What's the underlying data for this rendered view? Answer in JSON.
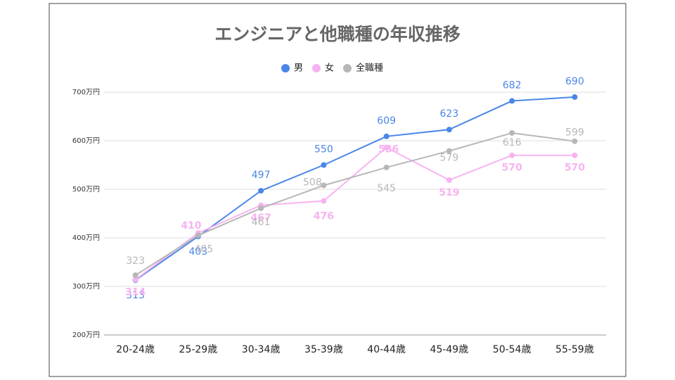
{
  "chart_data": {
    "type": "line",
    "title": "エンジニアと他職種の年収推移",
    "categories": [
      "20-24歳",
      "25-29歳",
      "30-34歳",
      "35-39歳",
      "40-44歳",
      "45-49歳",
      "50-54歳",
      "55-59歳"
    ],
    "series": [
      {
        "name": "男",
        "color": "#4a86e8",
        "values": [
          313,
          403,
          497,
          550,
          609,
          623,
          682,
          690
        ]
      },
      {
        "name": "女",
        "color": "#f7b3f0",
        "values": [
          314,
          410,
          467,
          476,
          586,
          519,
          570,
          570
        ]
      },
      {
        "name": "全職種",
        "color": "#b7b7b7",
        "values": [
          323,
          405,
          461,
          508,
          545,
          579,
          616,
          599
        ]
      }
    ],
    "ylim": [
      200,
      700
    ],
    "yticks": [
      {
        "value": 200,
        "label": "200万円"
      },
      {
        "value": 300,
        "label": "300万円"
      },
      {
        "value": 400,
        "label": "400万円"
      },
      {
        "value": 500,
        "label": "500万円"
      },
      {
        "value": 600,
        "label": "600万円"
      },
      {
        "value": 700,
        "label": "700万円"
      }
    ],
    "grid": true,
    "legend": "top"
  }
}
